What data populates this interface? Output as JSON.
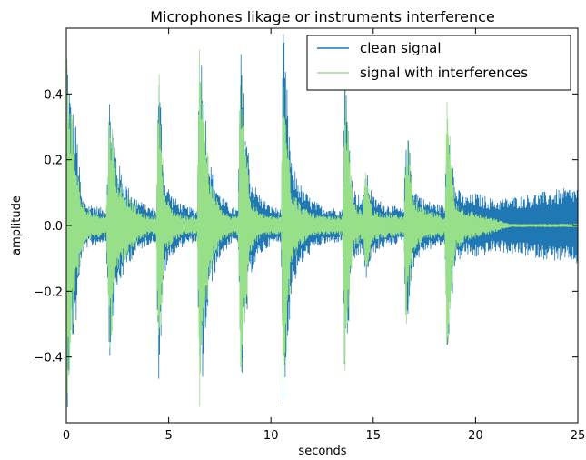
{
  "chart_data": {
    "type": "line",
    "title": "Microphones likage or instruments interference",
    "xlabel": "seconds",
    "ylabel": "amplitude",
    "xlim": [
      0,
      25
    ],
    "ylim": [
      -0.6,
      0.6
    ],
    "x_ticks": [
      0,
      5,
      10,
      15,
      20,
      25
    ],
    "x_tick_labels": [
      "0",
      "5",
      "10",
      "15",
      "20",
      "25"
    ],
    "y_ticks": [
      -0.4,
      -0.2,
      0.0,
      0.2,
      0.4
    ],
    "y_tick_labels": [
      "−0.4",
      "−0.2",
      "0.0",
      "0.2",
      "0.4"
    ],
    "grid": false,
    "legend_position": "top-right",
    "series": [
      {
        "name": "clean signal",
        "color": "#1f77b4",
        "envelope": [
          {
            "x": 0.0,
            "y": 0.61
          },
          {
            "x": 0.2,
            "y": 0.4
          },
          {
            "x": 0.5,
            "y": 0.3
          },
          {
            "x": 0.75,
            "y": 0.09
          },
          {
            "x": 1.0,
            "y": 0.07
          },
          {
            "x": 1.5,
            "y": 0.06
          },
          {
            "x": 1.95,
            "y": 0.05
          },
          {
            "x": 2.1,
            "y": 0.41
          },
          {
            "x": 2.5,
            "y": 0.2
          },
          {
            "x": 3.0,
            "y": 0.12
          },
          {
            "x": 3.5,
            "y": 0.08
          },
          {
            "x": 4.0,
            "y": 0.06
          },
          {
            "x": 4.4,
            "y": 0.05
          },
          {
            "x": 4.5,
            "y": 0.52
          },
          {
            "x": 4.8,
            "y": 0.15
          },
          {
            "x": 5.2,
            "y": 0.09
          },
          {
            "x": 5.8,
            "y": 0.06
          },
          {
            "x": 6.4,
            "y": 0.05
          },
          {
            "x": 6.5,
            "y": 0.61
          },
          {
            "x": 7.0,
            "y": 0.2
          },
          {
            "x": 7.5,
            "y": 0.1
          },
          {
            "x": 8.0,
            "y": 0.06
          },
          {
            "x": 8.4,
            "y": 0.05
          },
          {
            "x": 8.5,
            "y": 0.56
          },
          {
            "x": 9.0,
            "y": 0.15
          },
          {
            "x": 9.5,
            "y": 0.09
          },
          {
            "x": 10.0,
            "y": 0.06
          },
          {
            "x": 10.5,
            "y": 0.05
          },
          {
            "x": 10.6,
            "y": 0.61
          },
          {
            "x": 11.0,
            "y": 0.2
          },
          {
            "x": 11.5,
            "y": 0.12
          },
          {
            "x": 12.0,
            "y": 0.08
          },
          {
            "x": 12.5,
            "y": 0.06
          },
          {
            "x": 13.5,
            "y": 0.05
          },
          {
            "x": 13.6,
            "y": 0.5
          },
          {
            "x": 14.0,
            "y": 0.12
          },
          {
            "x": 14.5,
            "y": 0.08
          },
          {
            "x": 14.6,
            "y": 0.18
          },
          {
            "x": 15.0,
            "y": 0.09
          },
          {
            "x": 15.5,
            "y": 0.07
          },
          {
            "x": 16.5,
            "y": 0.05
          },
          {
            "x": 16.6,
            "y": 0.32
          },
          {
            "x": 17.0,
            "y": 0.12
          },
          {
            "x": 17.5,
            "y": 0.08
          },
          {
            "x": 18.5,
            "y": 0.06
          },
          {
            "x": 18.6,
            "y": 0.41
          },
          {
            "x": 19.0,
            "y": 0.12
          },
          {
            "x": 19.5,
            "y": 0.09
          },
          {
            "x": 20.0,
            "y": 0.1
          },
          {
            "x": 21.0,
            "y": 0.08
          },
          {
            "x": 22.0,
            "y": 0.09
          },
          {
            "x": 23.0,
            "y": 0.1
          },
          {
            "x": 24.0,
            "y": 0.11
          },
          {
            "x": 25.0,
            "y": 0.12
          }
        ]
      },
      {
        "name": "signal with interferences",
        "color": "#98df8a",
        "envelope": [
          {
            "x": 0.0,
            "y": 0.61
          },
          {
            "x": 0.2,
            "y": 0.4
          },
          {
            "x": 0.5,
            "y": 0.2
          },
          {
            "x": 0.75,
            "y": 0.08
          },
          {
            "x": 1.0,
            "y": 0.05
          },
          {
            "x": 1.5,
            "y": 0.04
          },
          {
            "x": 1.95,
            "y": 0.03
          },
          {
            "x": 2.1,
            "y": 0.41
          },
          {
            "x": 2.5,
            "y": 0.15
          },
          {
            "x": 3.0,
            "y": 0.1
          },
          {
            "x": 3.5,
            "y": 0.05
          },
          {
            "x": 4.0,
            "y": 0.03
          },
          {
            "x": 4.4,
            "y": 0.03
          },
          {
            "x": 4.5,
            "y": 0.52
          },
          {
            "x": 4.8,
            "y": 0.1
          },
          {
            "x": 5.2,
            "y": 0.05
          },
          {
            "x": 5.8,
            "y": 0.03
          },
          {
            "x": 6.4,
            "y": 0.03
          },
          {
            "x": 6.5,
            "y": 0.61
          },
          {
            "x": 7.0,
            "y": 0.15
          },
          {
            "x": 7.5,
            "y": 0.06
          },
          {
            "x": 8.0,
            "y": 0.03
          },
          {
            "x": 8.4,
            "y": 0.03
          },
          {
            "x": 8.5,
            "y": 0.56
          },
          {
            "x": 9.0,
            "y": 0.08
          },
          {
            "x": 9.5,
            "y": 0.04
          },
          {
            "x": 10.0,
            "y": 0.03
          },
          {
            "x": 10.5,
            "y": 0.03
          },
          {
            "x": 10.6,
            "y": 0.61
          },
          {
            "x": 11.0,
            "y": 0.12
          },
          {
            "x": 11.5,
            "y": 0.06
          },
          {
            "x": 12.0,
            "y": 0.04
          },
          {
            "x": 12.5,
            "y": 0.03
          },
          {
            "x": 13.5,
            "y": 0.03
          },
          {
            "x": 13.6,
            "y": 0.5
          },
          {
            "x": 14.0,
            "y": 0.08
          },
          {
            "x": 14.5,
            "y": 0.04
          },
          {
            "x": 14.6,
            "y": 0.18
          },
          {
            "x": 15.0,
            "y": 0.05
          },
          {
            "x": 15.5,
            "y": 0.04
          },
          {
            "x": 16.5,
            "y": 0.03
          },
          {
            "x": 16.6,
            "y": 0.32
          },
          {
            "x": 17.0,
            "y": 0.08
          },
          {
            "x": 17.5,
            "y": 0.05
          },
          {
            "x": 18.5,
            "y": 0.03
          },
          {
            "x": 18.6,
            "y": 0.41
          },
          {
            "x": 19.0,
            "y": 0.08
          },
          {
            "x": 19.5,
            "y": 0.05
          },
          {
            "x": 20.0,
            "y": 0.04
          },
          {
            "x": 21.0,
            "y": 0.02
          },
          {
            "x": 21.7,
            "y": 0.005
          },
          {
            "x": 23.0,
            "y": 0.005
          },
          {
            "x": 25.0,
            "y": 0.005
          }
        ]
      }
    ]
  }
}
